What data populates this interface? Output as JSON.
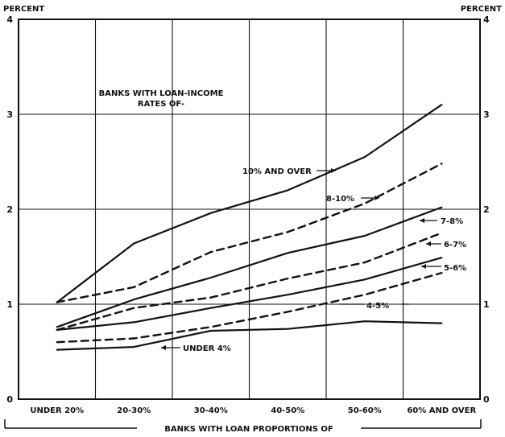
{
  "chart_data": {
    "type": "line",
    "y_unit_left": "PERCENT",
    "y_unit_right": "PERCENT",
    "xlabel": "BANKS WITH LOAN PROPORTIONS OF",
    "legend_title_line1": "BANKS WITH LOAN-INCOME",
    "legend_title_line2": "RATES OF-",
    "ylim": [
      0,
      4
    ],
    "yticks": [
      "0",
      "1",
      "2",
      "3",
      "4"
    ],
    "categories": [
      "UNDER 20%",
      "20-30%",
      "30-40%",
      "40-50%",
      "50-60%",
      "60% AND OVER"
    ],
    "series": [
      {
        "name": "10% AND OVER",
        "dashed": false,
        "values": [
          1.02,
          1.64,
          1.96,
          2.2,
          2.55,
          3.1
        ]
      },
      {
        "name": "8-10%",
        "dashed": true,
        "values": [
          1.02,
          1.18,
          1.55,
          1.76,
          2.06,
          2.48
        ]
      },
      {
        "name": "7-8%",
        "dashed": false,
        "values": [
          0.76,
          1.05,
          1.28,
          1.54,
          1.72,
          2.02
        ]
      },
      {
        "name": "6-7%",
        "dashed": true,
        "values": [
          0.73,
          0.96,
          1.07,
          1.27,
          1.44,
          1.75
        ]
      },
      {
        "name": "5-6%",
        "dashed": false,
        "values": [
          0.73,
          0.81,
          0.96,
          1.1,
          1.26,
          1.49
        ]
      },
      {
        "name": "4-5%",
        "dashed": true,
        "values": [
          0.6,
          0.64,
          0.76,
          0.92,
          1.1,
          1.33
        ]
      },
      {
        "name": "UNDER 4%",
        "dashed": false,
        "values": [
          0.52,
          0.55,
          0.72,
          0.74,
          0.82,
          0.8
        ]
      }
    ],
    "line_color": "#111111"
  }
}
